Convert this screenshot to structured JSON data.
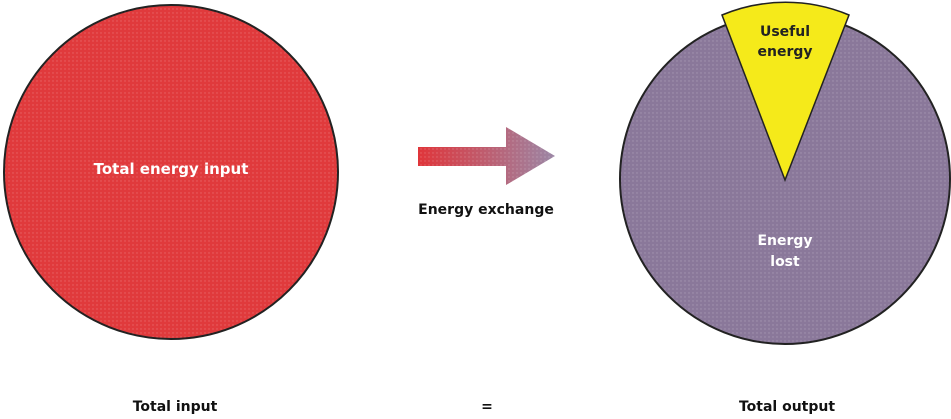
{
  "input_pie": {
    "label": "Total energy input",
    "color": "#e03a3c"
  },
  "arrow": {
    "label": "Energy exchange",
    "color_start": "#e0353a",
    "color_end": "#9b87a6"
  },
  "output_pie": {
    "useful": {
      "label_line1": "Useful",
      "label_line2": "energy",
      "color": "#f5ea1a"
    },
    "lost": {
      "label_line1": "Energy",
      "label_line2": "lost",
      "color": "#8a789a"
    }
  },
  "captions": {
    "left": "Total input",
    "middle": "=",
    "right": "Total output"
  }
}
